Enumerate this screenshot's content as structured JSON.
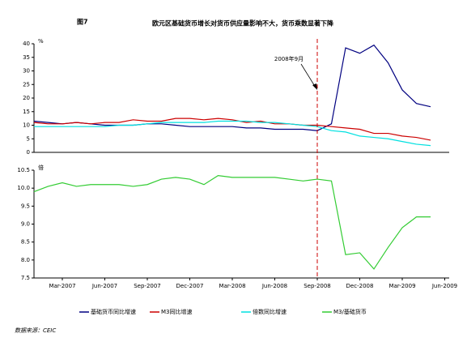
{
  "figure_label": "图7",
  "title": "欧元区基础货币增长对货币供应量影响不大，货币乘数显著下降",
  "source": "数据来源：CEIC",
  "chart_data": [
    {
      "type": "line",
      "unit_label": "%",
      "ylim": [
        0,
        40
      ],
      "yticks": [
        0,
        5,
        10,
        15,
        20,
        25,
        30,
        35,
        40
      ],
      "annotation": {
        "text": "2008年9月",
        "x": "Sep-2008",
        "color": "#cc0000"
      },
      "series": [
        {
          "name": "基础货币同比增速",
          "color": "#000080",
          "values": [
            11.5,
            11,
            10.5,
            11,
            10.5,
            10,
            10,
            10,
            10.5,
            10.5,
            10,
            9.5,
            9.5,
            9.5,
            9.5,
            9,
            9,
            8.5,
            8.5,
            8.5,
            8,
            10.5,
            38.5,
            36.5,
            39.5,
            33,
            23,
            18,
            16.8,
            null
          ]
        },
        {
          "name": "M3同比增速",
          "color": "#cc0000",
          "values": [
            11,
            10.5,
            10.5,
            11,
            10.5,
            11,
            11,
            12,
            11.5,
            11.5,
            12.5,
            12.5,
            12,
            12.5,
            12,
            11,
            11.5,
            10.5,
            10.5,
            10,
            10,
            9.5,
            9,
            8.5,
            7,
            7,
            6,
            5.5,
            4.5,
            null
          ]
        },
        {
          "name": "倍数同比增速",
          "color": "#00e0e0",
          "values": [
            9.5,
            9.5,
            9.5,
            9.5,
            9.5,
            9.5,
            10,
            10,
            10.5,
            11,
            11,
            11,
            11,
            11.5,
            11.5,
            11.5,
            11,
            11,
            10.5,
            10,
            9.5,
            8,
            7.5,
            6,
            5.5,
            5,
            4,
            3,
            2.5,
            null
          ]
        }
      ]
    },
    {
      "type": "line",
      "unit_label": "倍",
      "ylim": [
        7.5,
        10.5
      ],
      "yticks": [
        7.5,
        {
          "value": 8,
          "label": "8.0"
        },
        8.5,
        {
          "value": 9,
          "label": "9.0"
        },
        9.5,
        {
          "value": 10,
          "label": "10.0"
        },
        10.5
      ],
      "categories": [
        null,
        null,
        "Mar-2007",
        null,
        null,
        "Jun-2007",
        null,
        null,
        "Sep-2007",
        null,
        null,
        "Dec-2007",
        null,
        null,
        "Mar-2008",
        null,
        null,
        "Jun-2008",
        null,
        null,
        "Sep-2008",
        null,
        null,
        "Dec-2008",
        null,
        null,
        "Mar-2009",
        null,
        null,
        "Jun-2009"
      ],
      "series": [
        {
          "name": "M3/基础货币",
          "color": "#33cc33",
          "values": [
            9.9,
            10.05,
            10.15,
            10.05,
            10.1,
            10.1,
            10.1,
            10.05,
            10.1,
            10.25,
            10.3,
            10.25,
            10.1,
            10.35,
            10.3,
            10.3,
            10.3,
            10.3,
            10.25,
            10.2,
            10.25,
            10.2,
            8.15,
            8.2,
            7.75,
            8.35,
            8.9,
            9.2,
            9.2,
            null
          ]
        }
      ]
    }
  ]
}
